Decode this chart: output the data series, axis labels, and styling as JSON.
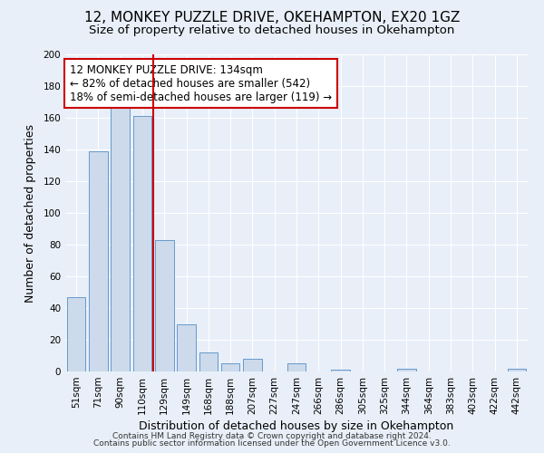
{
  "title": "12, MONKEY PUZZLE DRIVE, OKEHAMPTON, EX20 1GZ",
  "subtitle": "Size of property relative to detached houses in Okehampton",
  "xlabel": "Distribution of detached houses by size in Okehampton",
  "ylabel": "Number of detached properties",
  "bar_labels": [
    "51sqm",
    "71sqm",
    "90sqm",
    "110sqm",
    "129sqm",
    "149sqm",
    "168sqm",
    "188sqm",
    "207sqm",
    "227sqm",
    "247sqm",
    "266sqm",
    "286sqm",
    "305sqm",
    "325sqm",
    "344sqm",
    "364sqm",
    "383sqm",
    "403sqm",
    "422sqm",
    "442sqm"
  ],
  "bar_values": [
    47,
    139,
    167,
    161,
    83,
    30,
    12,
    5,
    8,
    0,
    5,
    0,
    1,
    0,
    0,
    2,
    0,
    0,
    0,
    0,
    2
  ],
  "bar_color": "#ccdaeb",
  "bar_edgecolor": "#6699cc",
  "vline_index": 4,
  "vline_color": "#cc0000",
  "annotation_text": "12 MONKEY PUZZLE DRIVE: 134sqm\n← 82% of detached houses are smaller (542)\n18% of semi-detached houses are larger (119) →",
  "annotation_box_color": "#ffffff",
  "annotation_box_edgecolor": "#cc0000",
  "ylim": [
    0,
    200
  ],
  "yticks": [
    0,
    20,
    40,
    60,
    80,
    100,
    120,
    140,
    160,
    180,
    200
  ],
  "background_color": "#e8eff8",
  "plot_background_color": "#e8eff8",
  "grid_color": "#ffffff",
  "footer_line1": "Contains HM Land Registry data © Crown copyright and database right 2024.",
  "footer_line2": "Contains public sector information licensed under the Open Government Licence v3.0.",
  "title_fontsize": 11,
  "subtitle_fontsize": 9.5,
  "xlabel_fontsize": 9,
  "ylabel_fontsize": 9,
  "tick_fontsize": 7.5,
  "annotation_fontsize": 8.5,
  "footer_fontsize": 6.5
}
